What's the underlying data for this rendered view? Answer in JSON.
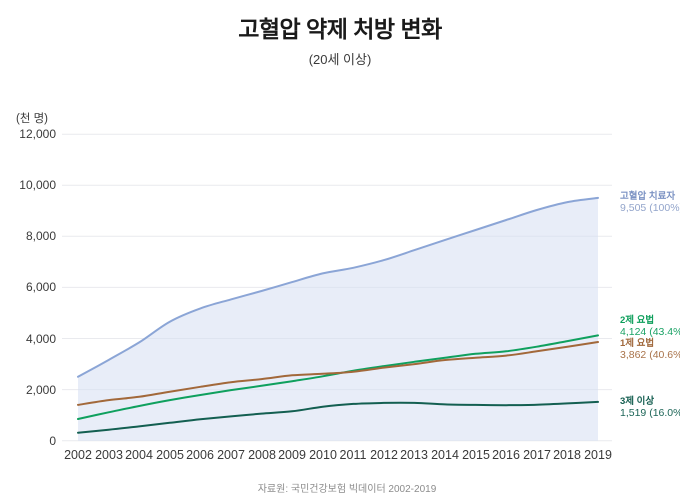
{
  "header": {
    "title": "고혈압 약제 처방 변화",
    "subtitle": "(20세 이상)"
  },
  "y_axis": {
    "unit": "(천 명)",
    "tick_labels": [
      "0",
      "2,000",
      "4,000",
      "6,000",
      "8,000",
      "10,000",
      "12,000"
    ],
    "tick_values": [
      0,
      2000,
      4000,
      6000,
      8000,
      10000,
      12000
    ]
  },
  "x_axis": {
    "years": [
      "2002",
      "2003",
      "2004",
      "2005",
      "2006",
      "2007",
      "2008",
      "2009",
      "2010",
      "2011",
      "2012",
      "2013",
      "2014",
      "2015",
      "2016",
      "2017",
      "2018",
      "2019"
    ]
  },
  "source": "자료원: 국민건강보험 빅데이터 2002-2019",
  "colors": {
    "background": "#ffffff",
    "gridline": "#e9eaee",
    "area_fill": "rgba(214,223,243,0.55)",
    "title_text": "#1a1a1a",
    "axis_text": "#3a3a3a",
    "source_text": "#8c8c8c"
  },
  "chart_data": {
    "type": "area",
    "title": "고혈압 약제 처방 변화",
    "subtitle": "(20세 이상)",
    "ylabel": "(천 명)",
    "xlabel": "",
    "ylim": [
      0,
      12000
    ],
    "grid": true,
    "legend_position": "right-of-line-ends",
    "x": [
      2002,
      2003,
      2004,
      2005,
      2006,
      2007,
      2008,
      2009,
      2010,
      2011,
      2012,
      2013,
      2014,
      2015,
      2016,
      2017,
      2018,
      2019
    ],
    "series": [
      {
        "name": "고혈압 치료자",
        "end_label": "9,505 (100%)",
        "end_value": 9505,
        "line_color": "#8ba5d6",
        "name_color": "#7b92c3",
        "value_color": "#93a5cb",
        "filled": true,
        "values": [
          2500,
          3160,
          3850,
          4660,
          5180,
          5530,
          5860,
          6210,
          6550,
          6770,
          7070,
          7460,
          7860,
          8250,
          8640,
          9030,
          9340,
          9505
        ]
      },
      {
        "name": "2제 요법",
        "end_label": "4,124 (43.4%)",
        "end_value": 4124,
        "line_color": "#0fa05e",
        "name_color": "#0c9e5a",
        "value_color": "#1aa265",
        "filled": false,
        "values": [
          850,
          1110,
          1360,
          1590,
          1790,
          1980,
          2150,
          2330,
          2520,
          2740,
          2920,
          3090,
          3250,
          3400,
          3500,
          3680,
          3900,
          4124
        ]
      },
      {
        "name": "1제 요법",
        "end_label": "3,862 (40.6%)",
        "end_value": 3862,
        "line_color": "#a2683a",
        "name_color": "#a0683c",
        "value_color": "#a9734a",
        "filled": false,
        "values": [
          1400,
          1590,
          1720,
          1920,
          2110,
          2290,
          2410,
          2560,
          2620,
          2700,
          2860,
          3000,
          3160,
          3250,
          3330,
          3500,
          3680,
          3862
        ]
      },
      {
        "name": "3제 이상",
        "end_label": "1,519 (16.0%)",
        "end_value": 1519,
        "line_color": "#135f51",
        "name_color": "#145e50",
        "value_color": "#1c6557",
        "filled": false,
        "values": [
          310,
          430,
          560,
          700,
          840,
          950,
          1060,
          1150,
          1330,
          1440,
          1480,
          1480,
          1420,
          1400,
          1390,
          1410,
          1460,
          1519
        ]
      }
    ]
  }
}
